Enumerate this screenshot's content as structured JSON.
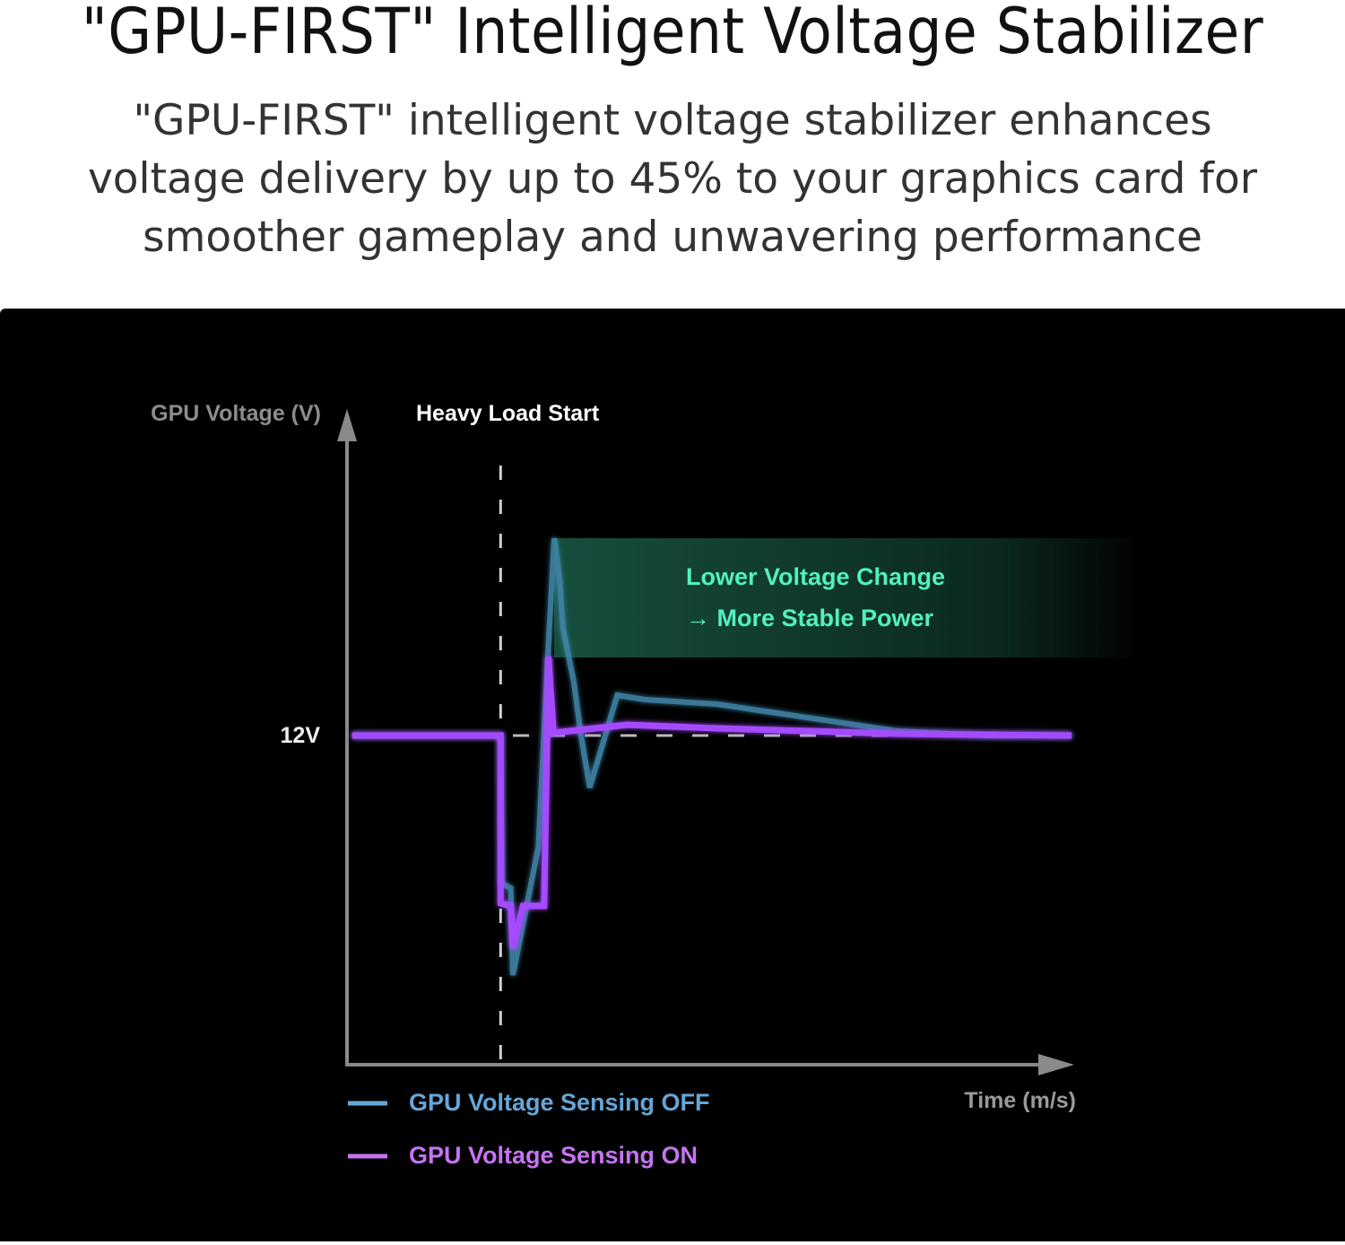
{
  "header": {
    "title": "\"GPU-FIRST\" Intelligent Voltage Stabilizer",
    "subtitle": "\"GPU-FIRST\" intelligent voltage stabilizer enhances voltage delivery by up to 45% to your graphics card for smoother gameplay and unwavering performance"
  },
  "chart_data": {
    "type": "line",
    "title": "",
    "ylabel": "GPU Voltage (V)",
    "xlabel": "Time (m/s)",
    "y_tick_labels": [
      "12V"
    ],
    "grid": false,
    "legend_position": "bottom-left",
    "xlim": [
      0,
      100
    ],
    "ylim": [
      8.3,
      15.6
    ],
    "annotations": {
      "event_label": "Heavy Load Start",
      "event_x": 21.2,
      "band_label_line1": "Lower Voltage Change",
      "band_label_line2": "→ More Stable Power",
      "band_range": [
        12.87,
        14.2
      ],
      "band_color": "#3fe0b0"
    },
    "series": [
      {
        "name": "GPU Voltage Sensing OFF",
        "color": "#3f86a8",
        "legend_color": "#66a6d6",
        "x": [
          0.7,
          21.2,
          21.4,
          22.6,
          22.9,
          26.4,
          27.8,
          28.6,
          29.3,
          29.8,
          31.3,
          32.3,
          33.5,
          37.3,
          41.2,
          51.1,
          63.5,
          75.9,
          88.2,
          100
        ],
        "y": [
          12,
          12,
          10.35,
          10.3,
          9.33,
          10.75,
          13.0,
          14.2,
          13.78,
          13.2,
          12.6,
          12.0,
          11.42,
          12.45,
          12.4,
          12.35,
          12.2,
          12.05,
          12.0,
          12.0
        ]
      },
      {
        "name": "GPU Voltage Sensing ON",
        "color": "#a54cff",
        "legend_color": "#c674f2",
        "x": [
          0.7,
          21.2,
          21.2,
          22.6,
          22.9,
          24.3,
          27.2,
          27.8,
          28.5,
          38.7,
          51.1,
          75.9,
          100
        ],
        "y": [
          12,
          12,
          10.13,
          10.1,
          9.63,
          10.1,
          10.1,
          12.88,
          12.03,
          12.12,
          12.08,
          12.02,
          12.0
        ]
      }
    ]
  }
}
